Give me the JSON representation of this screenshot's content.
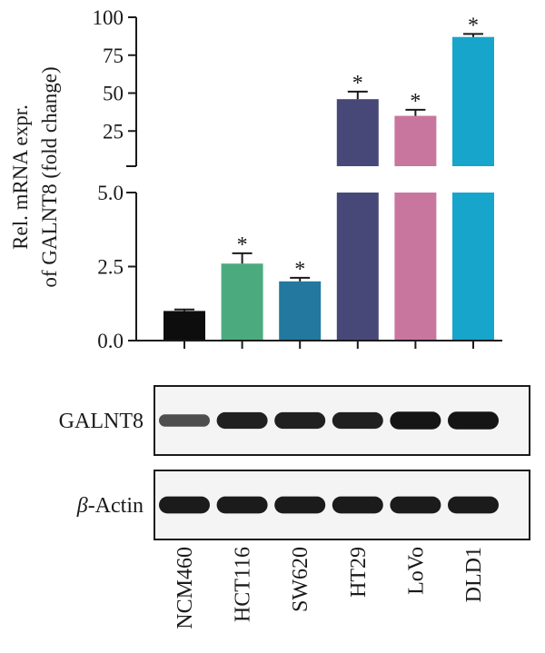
{
  "chart_data": {
    "type": "bar",
    "categories": [
      "NCM460",
      "HCT116",
      "SW620",
      "HT29",
      "LoVo",
      "DLD1"
    ],
    "values": [
      1.0,
      2.6,
      2.0,
      46,
      35,
      87
    ],
    "errors": [
      0.05,
      0.35,
      0.12,
      5,
      4,
      2
    ],
    "significance": [
      "",
      "*",
      "*",
      "*",
      "*",
      "*"
    ],
    "colors": [
      "#0d0d0d",
      "#4bab7f",
      "#22789f",
      "#484878",
      "#c9769f",
      "#17a5cc"
    ],
    "ylabel": [
      "Rel. mRNA expr.",
      "of GALNT8 (fold change)"
    ],
    "axis_break": true,
    "lower_ylim": [
      0,
      5.0
    ],
    "lower_ticks": [
      "0.0",
      "2.5",
      "5.0"
    ],
    "upper_ylim": [
      0,
      100
    ],
    "upper_ticks": [
      "25",
      "50",
      "75",
      "100"
    ],
    "legend": "none"
  },
  "blots": [
    {
      "label": "GALNT8",
      "intensity": [
        0.45,
        0.85,
        0.85,
        0.85,
        0.95,
        0.95
      ]
    },
    {
      "label_symbol": "β",
      "label_text": "-Actin",
      "intensity": [
        0.9,
        0.9,
        0.9,
        0.9,
        0.9,
        0.9
      ]
    }
  ]
}
